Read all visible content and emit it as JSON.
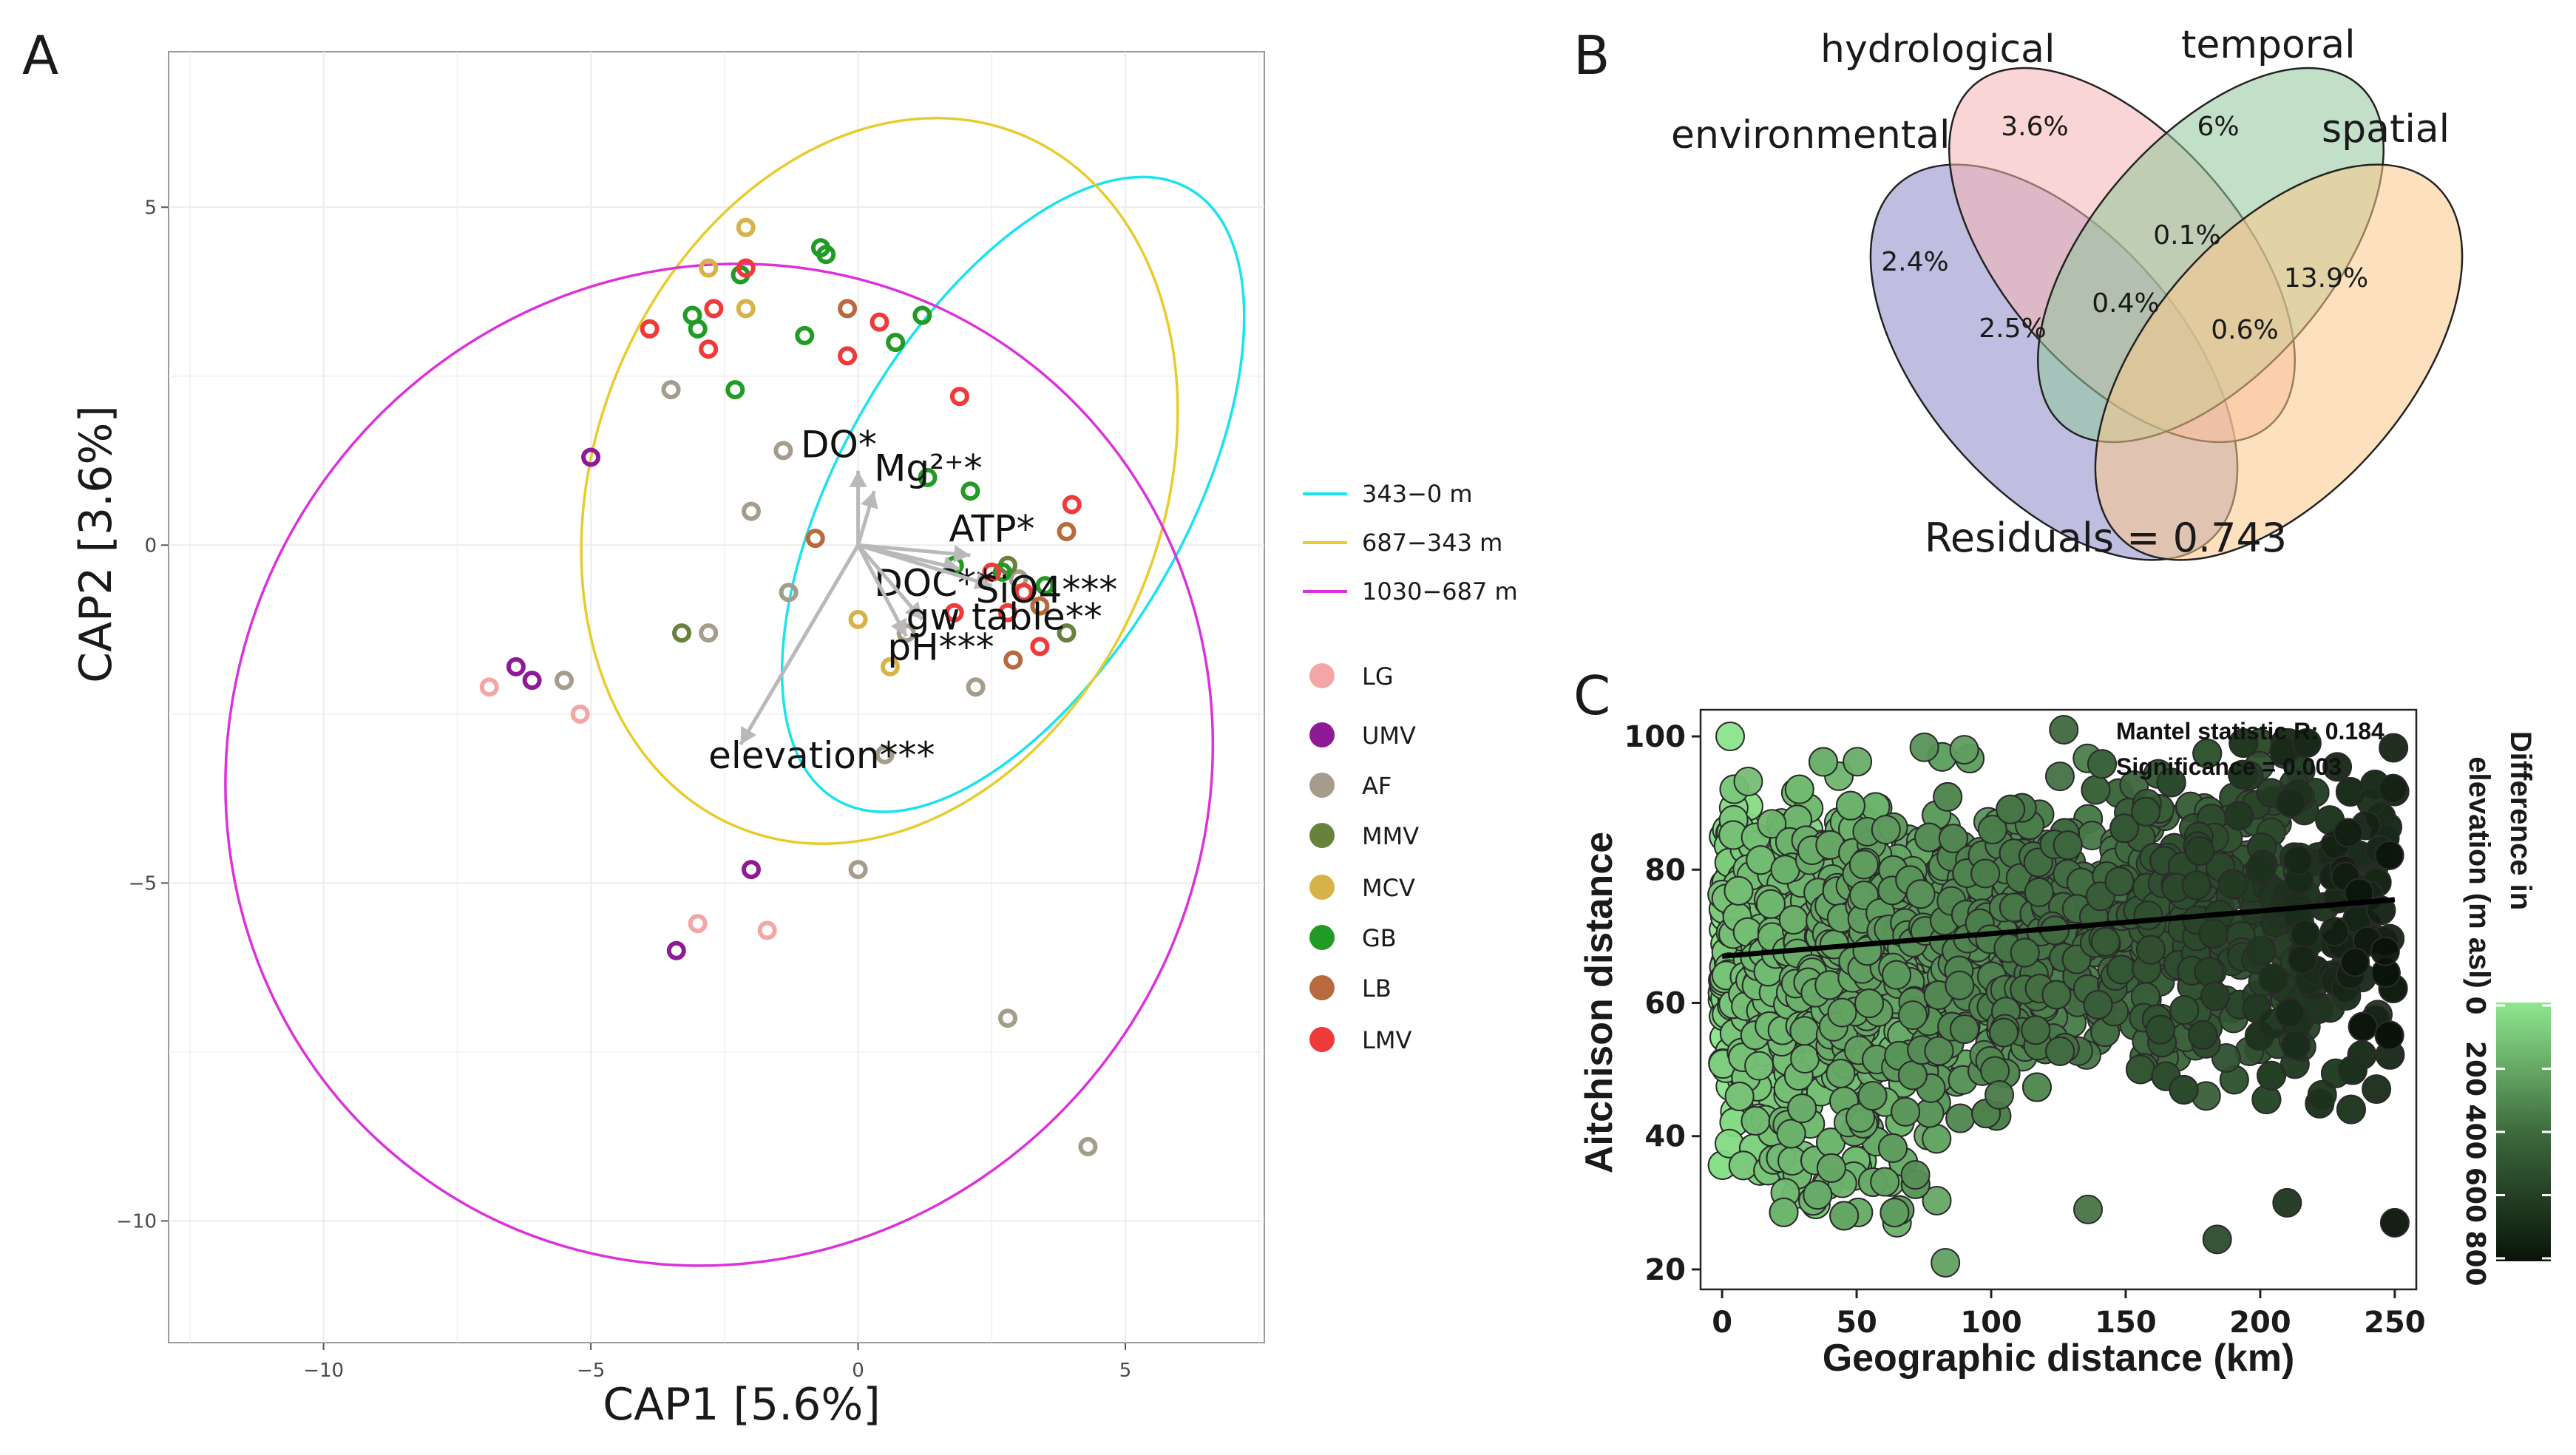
{
  "panels": {
    "a": {
      "letter": "A",
      "chart_data": {
        "type": "scatter",
        "title": "",
        "xlabel": "CAP1 [5.6%]",
        "ylabel": "CAP2 [3.6%]",
        "xlim": [
          -12.9,
          7.6
        ],
        "ylim": [
          -11.8,
          7.3
        ],
        "x_ticks": [
          -10,
          -5,
          0,
          5
        ],
        "y_ticks": [
          5,
          0,
          -5,
          -10
        ],
        "grid": true,
        "ellipses": [
          {
            "name": "343-0 m",
            "label": "343−0 m",
            "color": "#19e3ee",
            "cx": 2.9,
            "cy": 0.75,
            "rx": 6.6,
            "ry": 2.55,
            "angle_deg": -60
          },
          {
            "name": "687-343 m",
            "label": "687−343 m",
            "color": "#e8cb2c",
            "cx": 0.4,
            "cy": 0.95,
            "rx": 7.0,
            "ry": 4.2,
            "angle_deg": -68
          },
          {
            "name": "1030-687 m",
            "label": "1030−687 m",
            "color": "#db32db",
            "cx": -2.6,
            "cy": -3.25,
            "rx": 9.5,
            "ry": 7.2,
            "angle_deg": -55
          }
        ],
        "arrows": [
          {
            "label": "DO*",
            "x": 0.0,
            "y": 1.1
          },
          {
            "label": "Mg²⁺*",
            "x": 0.3,
            "y": 0.8
          },
          {
            "label": "ATP*",
            "x": 2.1,
            "y": -0.15
          },
          {
            "label": "DOC**",
            "x": 1.9,
            "y": -0.35
          },
          {
            "label": "SiO4***",
            "x": 2.5,
            "y": -0.6
          },
          {
            "label": "gw table**",
            "x": 1.2,
            "y": -1.1
          },
          {
            "label": "pH***",
            "x": 0.9,
            "y": -1.35
          },
          {
            "label": "elevation***",
            "x": -2.2,
            "y": -2.95
          }
        ],
        "groups_legend": [
          {
            "name": "LG",
            "color": "#f4a6a6"
          },
          {
            "name": "UMV",
            "color": "#8f1a96"
          },
          {
            "name": "AF",
            "color": "#a59c8c"
          },
          {
            "name": "MMV",
            "color": "#66823c"
          },
          {
            "name": "MCV",
            "color": "#d7b347"
          },
          {
            "name": "GB",
            "color": "#229a26"
          },
          {
            "name": "LB",
            "color": "#b86a3f"
          },
          {
            "name": "LMV",
            "color": "#f03a3a"
          }
        ],
        "points": [
          {
            "g": "LG",
            "x": -6.9,
            "y": -2.1
          },
          {
            "g": "LG",
            "x": -5.2,
            "y": -2.5
          },
          {
            "g": "LG",
            "x": -3.0,
            "y": -5.6
          },
          {
            "g": "LG",
            "x": -1.7,
            "y": -5.7
          },
          {
            "g": "UMV",
            "x": -5.0,
            "y": 1.3
          },
          {
            "g": "UMV",
            "x": -6.4,
            "y": -1.8
          },
          {
            "g": "UMV",
            "x": -6.1,
            "y": -2.0
          },
          {
            "g": "UMV",
            "x": -2.0,
            "y": -4.8
          },
          {
            "g": "UMV",
            "x": -3.4,
            "y": -6.0
          },
          {
            "g": "AF",
            "x": -5.5,
            "y": -2.0
          },
          {
            "g": "AF",
            "x": -3.5,
            "y": 2.3
          },
          {
            "g": "AF",
            "x": -2.8,
            "y": -1.3
          },
          {
            "g": "AF",
            "x": -1.4,
            "y": 1.4
          },
          {
            "g": "AF",
            "x": -2.0,
            "y": 0.5
          },
          {
            "g": "AF",
            "x": -1.3,
            "y": -0.7
          },
          {
            "g": "AF",
            "x": 0.5,
            "y": -3.1
          },
          {
            "g": "AF",
            "x": 0.0,
            "y": -4.8
          },
          {
            "g": "AF",
            "x": 2.8,
            "y": -7.0
          },
          {
            "g": "AF",
            "x": 4.3,
            "y": -8.9
          },
          {
            "g": "AF",
            "x": 0.9,
            "y": -1.3
          },
          {
            "g": "AF",
            "x": 2.2,
            "y": -2.1
          },
          {
            "g": "AF",
            "x": 3.0,
            "y": -0.5
          },
          {
            "g": "MMV",
            "x": -3.3,
            "y": -1.3
          },
          {
            "g": "MMV",
            "x": 2.8,
            "y": -0.3
          },
          {
            "g": "MMV",
            "x": 3.9,
            "y": -1.3
          },
          {
            "g": "MCV",
            "x": -2.1,
            "y": 4.7
          },
          {
            "g": "MCV",
            "x": -2.8,
            "y": 4.1
          },
          {
            "g": "MCV",
            "x": -2.1,
            "y": 3.5
          },
          {
            "g": "MCV",
            "x": 0.0,
            "y": -1.1
          },
          {
            "g": "MCV",
            "x": 0.6,
            "y": -1.8
          },
          {
            "g": "GB",
            "x": -0.7,
            "y": 4.4
          },
          {
            "g": "GB",
            "x": -0.6,
            "y": 4.3
          },
          {
            "g": "GB",
            "x": -2.2,
            "y": 4.0
          },
          {
            "g": "GB",
            "x": -3.1,
            "y": 3.4
          },
          {
            "g": "GB",
            "x": -3.0,
            "y": 3.2
          },
          {
            "g": "GB",
            "x": -1.0,
            "y": 3.1
          },
          {
            "g": "GB",
            "x": 0.7,
            "y": 3.0
          },
          {
            "g": "GB",
            "x": 1.2,
            "y": 3.4
          },
          {
            "g": "GB",
            "x": -2.3,
            "y": 2.3
          },
          {
            "g": "GB",
            "x": 1.3,
            "y": 1.0
          },
          {
            "g": "GB",
            "x": 2.1,
            "y": 0.8
          },
          {
            "g": "GB",
            "x": 2.7,
            "y": -0.4
          },
          {
            "g": "GB",
            "x": 3.5,
            "y": -0.6
          },
          {
            "g": "GB",
            "x": 1.8,
            "y": -0.3
          },
          {
            "g": "LB",
            "x": -0.2,
            "y": 3.5
          },
          {
            "g": "LB",
            "x": -0.8,
            "y": 0.1
          },
          {
            "g": "LB",
            "x": 3.9,
            "y": 0.2
          },
          {
            "g": "LB",
            "x": 3.4,
            "y": -0.9
          },
          {
            "g": "LB",
            "x": 2.9,
            "y": -1.7
          },
          {
            "g": "LMV",
            "x": -3.9,
            "y": 3.2
          },
          {
            "g": "LMV",
            "x": -2.7,
            "y": 3.5
          },
          {
            "g": "LMV",
            "x": -2.8,
            "y": 2.9
          },
          {
            "g": "LMV",
            "x": -2.1,
            "y": 4.1
          },
          {
            "g": "LMV",
            "x": 0.4,
            "y": 3.3
          },
          {
            "g": "LMV",
            "x": -0.2,
            "y": 2.8
          },
          {
            "g": "LMV",
            "x": 1.9,
            "y": 2.2
          },
          {
            "g": "LMV",
            "x": 4.0,
            "y": 0.6
          },
          {
            "g": "LMV",
            "x": 3.1,
            "y": -0.7
          },
          {
            "g": "LMV",
            "x": 2.8,
            "y": -1.0
          },
          {
            "g": "LMV",
            "x": 1.8,
            "y": -1.0
          },
          {
            "g": "LMV",
            "x": 3.4,
            "y": -1.5
          },
          {
            "g": "LMV",
            "x": 2.5,
            "y": -0.4
          }
        ]
      }
    },
    "b": {
      "letter": "B",
      "venn": {
        "sets": [
          {
            "name": "environmental",
            "color": "#8b89c6"
          },
          {
            "name": "hydrological",
            "color": "#f6b3b3"
          },
          {
            "name": "temporal",
            "color": "#8fc79a"
          },
          {
            "name": "spatial",
            "color": "#fbc98b"
          }
        ],
        "regions": {
          "env_only": "2.4%",
          "hyd_only": "3.6%",
          "tem_only": "6%",
          "spa_only": "13.9%",
          "hyd_tem_spa": "0.1%",
          "env_hyd_tem": "2.5%",
          "all_four": "0.4%",
          "tem_spa": "0.6%"
        },
        "residuals": "Residuals = 0.743"
      }
    },
    "c": {
      "letter": "C",
      "chart_data": {
        "type": "scatter",
        "xlabel": "Geographic distance (km)",
        "ylabel": "Aitchison distance",
        "xlim": [
          -8,
          258
        ],
        "ylim": [
          17,
          104
        ],
        "x_ticks": [
          0,
          50,
          100,
          150,
          200,
          250
        ],
        "y_ticks": [
          20,
          40,
          60,
          80,
          100
        ],
        "annotation_r": "Mantel statistic R: 0.184",
        "annotation_sig": "Significance = 0.003",
        "trend_line": {
          "x": [
            0,
            250
          ],
          "y": [
            67,
            75.5
          ]
        },
        "colorbar": {
          "title_line1": "Difference in",
          "title_line2": "elevation (m asl)",
          "ticks": [
            "0",
            "200",
            "400",
            "600",
            "800"
          ],
          "low_color": "#8ee88e",
          "high_color": "#0a130a"
        },
        "point_cloud_description": "dense cloud of ~4000 pairwise distances, Aitchison distance roughly 25-100 across geographic distance 0-250 km, colored by elevation difference",
        "outliers": [
          {
            "x": 83,
            "y": 21
          },
          {
            "x": 184,
            "y": 24.5
          },
          {
            "x": 250,
            "y": 27
          },
          {
            "x": 136,
            "y": 29
          },
          {
            "x": 210,
            "y": 30
          },
          {
            "x": 65,
            "y": 27
          }
        ]
      }
    }
  }
}
